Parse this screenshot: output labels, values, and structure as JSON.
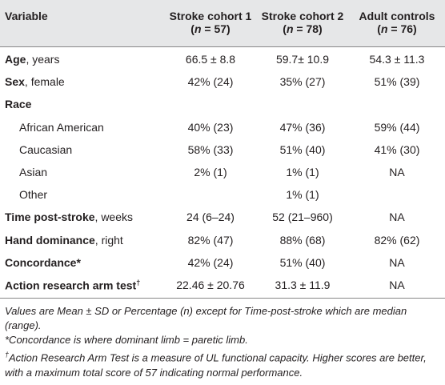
{
  "table": {
    "header": {
      "variable": "Variable",
      "columns": [
        {
          "name": "Stroke cohort 1",
          "n": [
            "(",
            "n",
            " = 57)"
          ]
        },
        {
          "name": "Stroke cohort 2",
          "n": [
            "(",
            "n",
            " = 78)"
          ]
        },
        {
          "name": "Adult controls",
          "n": [
            "(",
            "n",
            " = 76)"
          ]
        }
      ]
    },
    "rows": [
      {
        "label": "Age",
        "detail": ", years",
        "values": [
          "66.5 ± 8.8",
          "59.7± 10.9",
          "54.3 ± 11.3"
        ]
      },
      {
        "label": "Sex",
        "detail": ", female",
        "values": [
          "42% (24)",
          "35% (27)",
          "51% (39)"
        ]
      },
      {
        "label": "Race"
      },
      {
        "sublabel": "African American",
        "values": [
          "40% (23)",
          "47% (36)",
          "59% (44)"
        ]
      },
      {
        "sublabel": "Caucasian",
        "values": [
          "58% (33)",
          "51% (40)",
          "41% (30)"
        ]
      },
      {
        "sublabel": "Asian",
        "values": [
          "2% (1)",
          "1% (1)",
          "NA"
        ]
      },
      {
        "sublabel": "Other",
        "values": [
          null,
          "1% (1)",
          null
        ]
      },
      {
        "label": "Time post-stroke",
        "detail": ", weeks",
        "values": [
          "24 (6–24)",
          "52 (21–960)",
          "NA"
        ]
      },
      {
        "label": "Hand dominance",
        "detail": ", right",
        "values": [
          "82% (47)",
          "88% (68)",
          "82% (62)"
        ]
      },
      {
        "label": "Concordance*",
        "values": [
          "42% (24)",
          "51% (40)",
          "NA"
        ]
      },
      {
        "label": "Action research arm test",
        "sup": "†",
        "values": [
          "22.46 ± 20.76",
          "31.3 ± 11.9",
          "NA"
        ]
      }
    ]
  },
  "footnotes": [
    {
      "text": "Values are Mean ± SD or Percentage (n) except for Time-post-stroke which are median (range)."
    },
    {
      "text": "*Concordance is where dominant limb = paretic limb."
    },
    {
      "mark": "†",
      "text": "Action Research Arm Test is a measure of UL functional capacity. Higher scores are better, with a maximum total score of 57 indicating normal performance."
    }
  ]
}
